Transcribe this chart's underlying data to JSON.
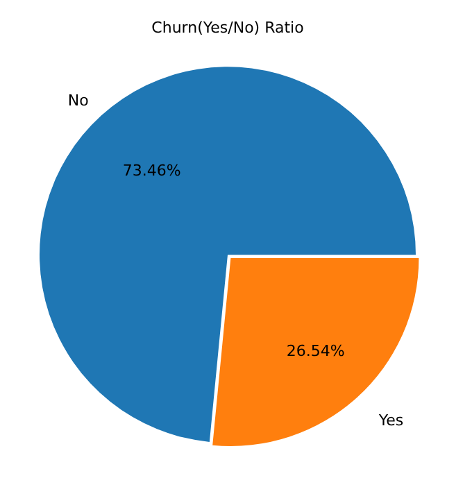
{
  "chart_data": {
    "type": "pie",
    "title": "Churn(Yes/No) Ratio",
    "categories": [
      "No",
      "Yes"
    ],
    "values": [
      73.46,
      26.54
    ],
    "colors": [
      "#1f77b4",
      "#ff7f0e"
    ],
    "value_labels": [
      "73.46%",
      "26.54%"
    ],
    "legend": false
  }
}
